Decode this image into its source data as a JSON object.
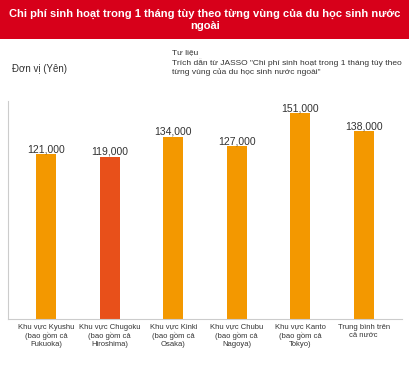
{
  "chart_data": {
    "type": "bar",
    "title": "Chi phí sinh hoạt trong 1 tháng tùy theo từng vùng của du học sinh nước ngoài",
    "unit_label": "Đơn vị (Yên)",
    "source_label": "Tư liệu",
    "source": "Trích dẫn từ JASSO \"Chi phí sinh hoạt trong 1 tháng tùy theo từng vùng của du học sinh nước ngoài\"",
    "categories": [
      "Khu vực Kyushu (bao gồm cả Fukuoka)",
      "Khu vực Chugoku (bao gồm cả Hiroshima)",
      "Khu vực Kinki (bao gồm cả Osaka)",
      "Khu vực Chubu (bao gồm cả Nagoya)",
      "Khu vực Kanto (bao gồm cả Tokyo)",
      "Trung bình trên cả nước"
    ],
    "values": [
      121000,
      119000,
      134000,
      127000,
      151000,
      138000
    ],
    "value_labels": [
      "121,000",
      "119,000",
      "134,000",
      "127,000",
      "151,000",
      "138,000"
    ],
    "colors": [
      "#f39800",
      "#e8501a",
      "#f39800",
      "#f39800",
      "#f39800",
      "#f39800"
    ],
    "ylim": [
      0,
      160000
    ],
    "data_labels": true,
    "tick_labels": "x",
    "grid": false
  }
}
